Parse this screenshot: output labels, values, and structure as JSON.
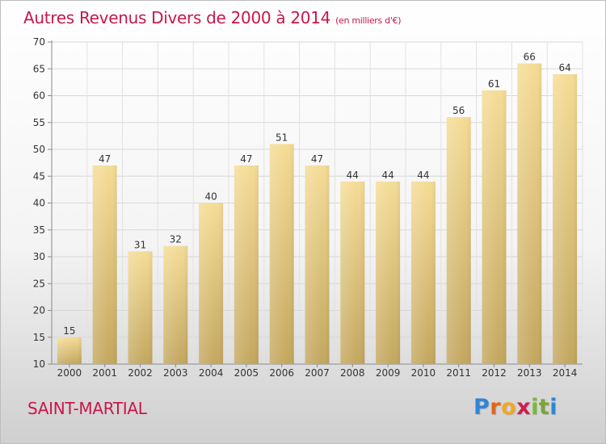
{
  "chart_data": {
    "type": "bar",
    "title": "Autres Revenus Divers de 2000 à 2014",
    "subtitle": "(en milliers d'€)",
    "categories": [
      "2000",
      "2001",
      "2002",
      "2003",
      "2004",
      "2005",
      "2006",
      "2007",
      "2008",
      "2009",
      "2010",
      "2011",
      "2012",
      "2013",
      "2014"
    ],
    "values": [
      15,
      47,
      31,
      32,
      40,
      47,
      51,
      47,
      44,
      44,
      44,
      56,
      61,
      66,
      64
    ],
    "ylim": [
      10,
      70
    ],
    "yticks": [
      10,
      15,
      20,
      25,
      30,
      35,
      40,
      45,
      50,
      55,
      60,
      65,
      70
    ],
    "grid": true,
    "xlabel": "",
    "ylabel": ""
  },
  "footer": {
    "location": "SAINT-MARTIAL",
    "brand_letters": [
      "P",
      "r",
      "o",
      "x",
      "i",
      "t",
      "i"
    ]
  },
  "colors": {
    "title": "#c8174a",
    "bar_light": "#f5dc96",
    "bar_dark": "#c3a75f",
    "brand": [
      "#2f86d6",
      "#e0661c",
      "#f0a826",
      "#cf1f4b",
      "#79b934",
      "#7aa43a",
      "#2f86d6"
    ]
  }
}
